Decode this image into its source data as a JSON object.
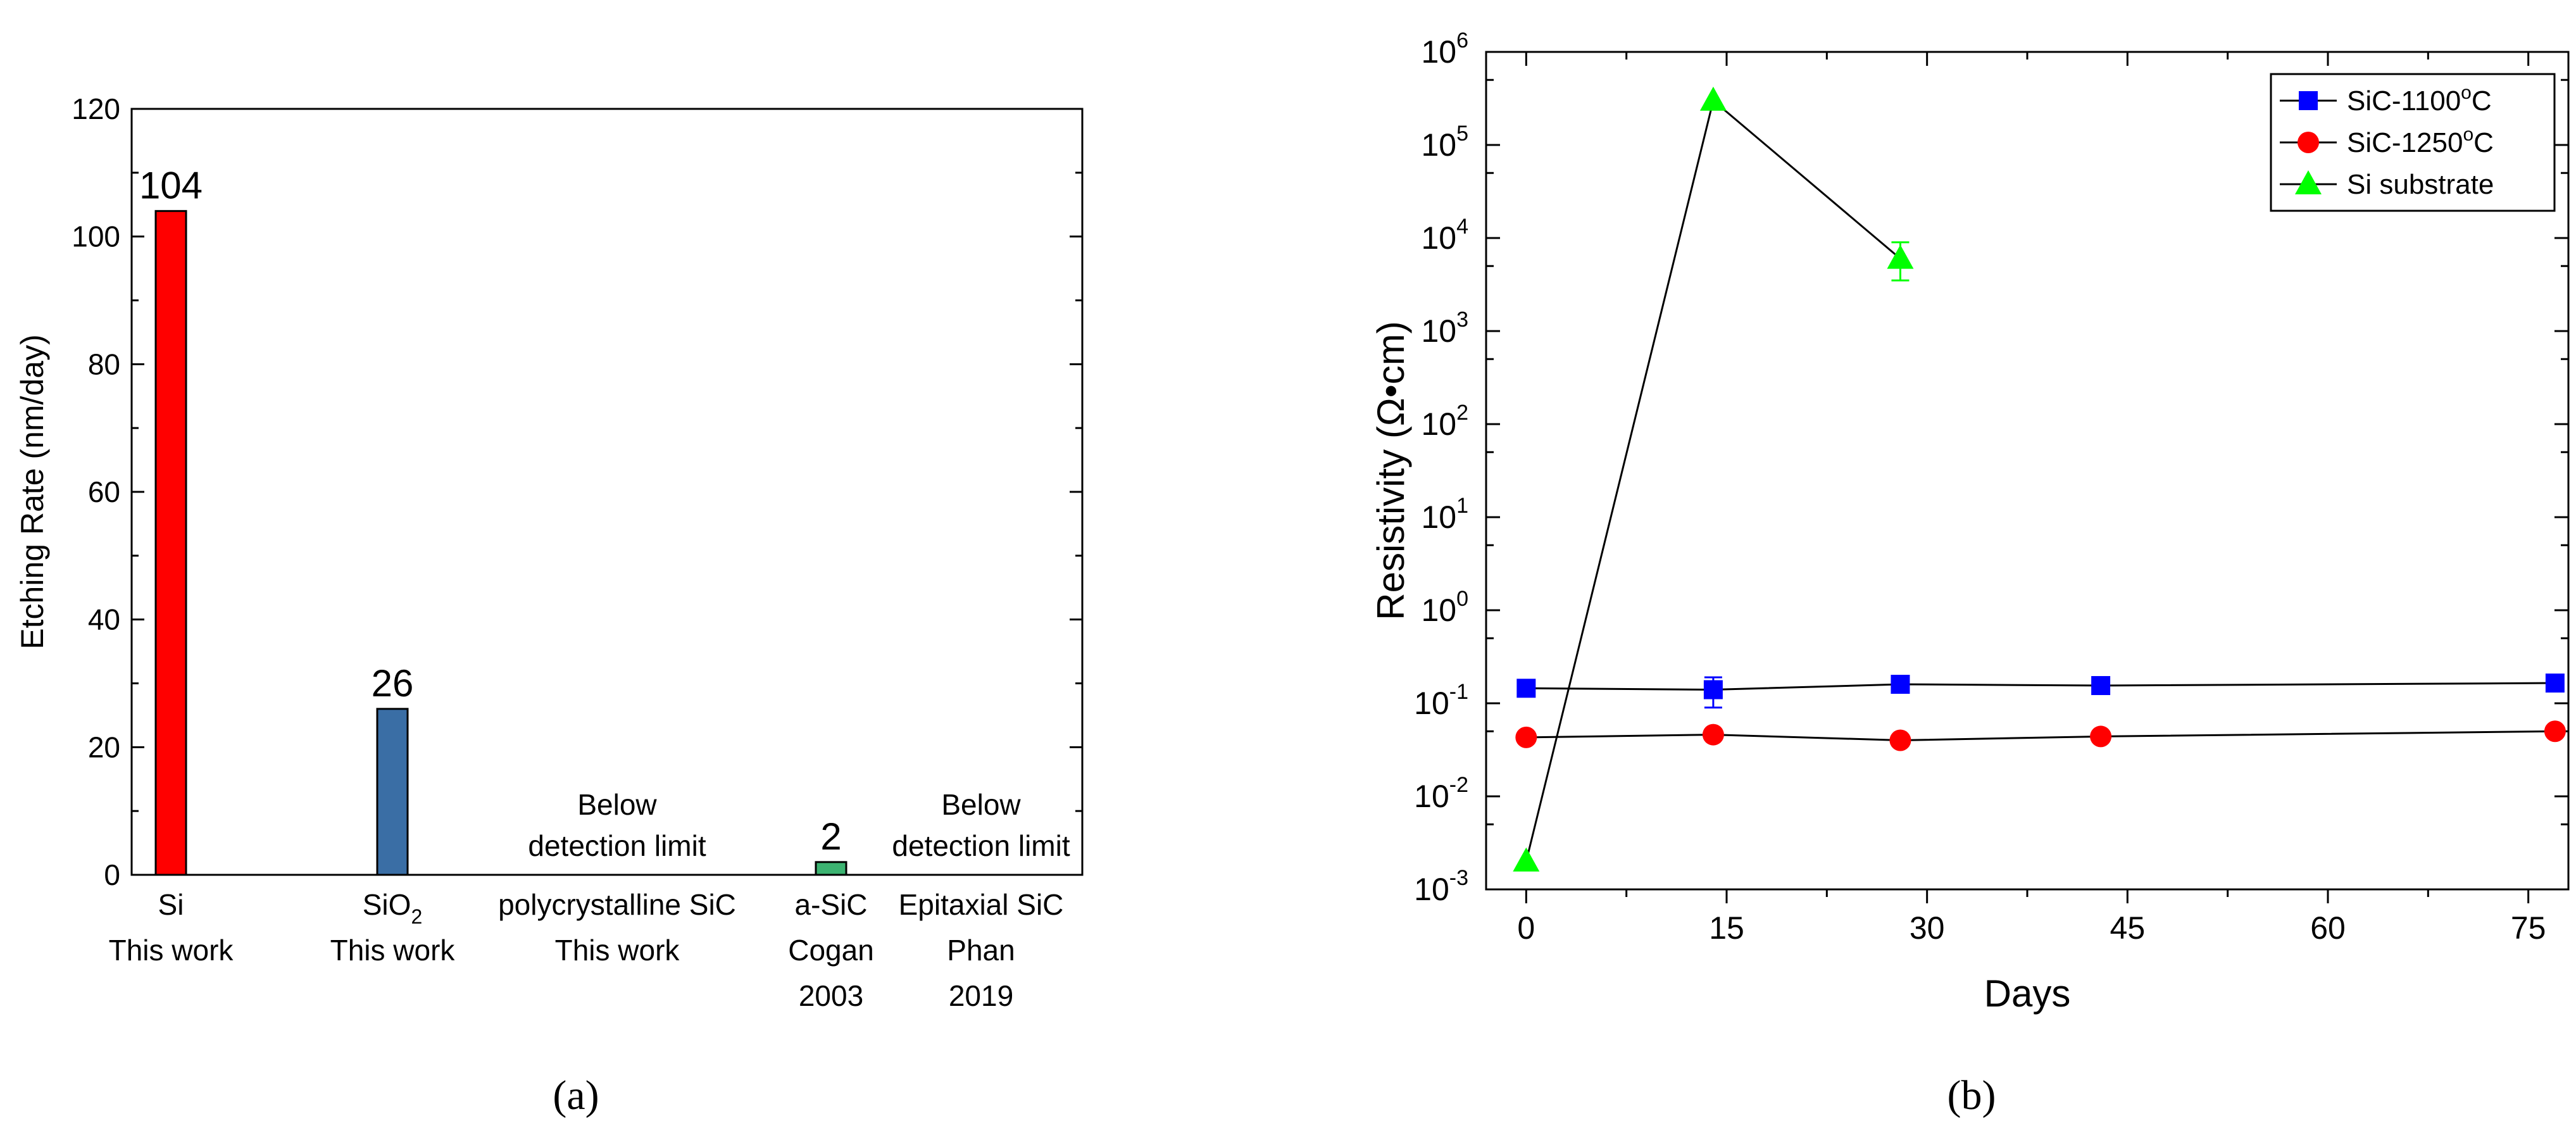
{
  "panels": {
    "a": "(a)",
    "b": "(b)"
  },
  "chart_data": [
    {
      "type": "bar",
      "ylabel": "Etching Rate (nm/day)",
      "ylim": [
        0,
        120
      ],
      "yticks": [
        0,
        20,
        40,
        60,
        80,
        100,
        120
      ],
      "categories": [
        {
          "lines": [
            "Si",
            "This work"
          ],
          "value": 104,
          "label": "104",
          "color": "#ff0000"
        },
        {
          "lines": [
            "SiO",
            "This work"
          ],
          "sub": "2",
          "value": 26,
          "label": "26",
          "color": "#3a6ea5"
        },
        {
          "lines": [
            "polycrystalline SiC",
            "This work"
          ],
          "value": null,
          "note": [
            "Below",
            "detection limit"
          ]
        },
        {
          "lines": [
            "a-SiC",
            "Cogan",
            "2003"
          ],
          "value": 2,
          "label": "2",
          "color": "#3cb371"
        },
        {
          "lines": [
            "Epitaxial SiC",
            "Phan",
            "2019"
          ],
          "value": null,
          "note": [
            "Below",
            "detection limit"
          ]
        }
      ]
    },
    {
      "type": "line",
      "xlabel": "Days",
      "ylabel": "Resistivity (Ω•cm)",
      "xlim": [
        -3,
        78
      ],
      "xticks": [
        0,
        15,
        30,
        45,
        60,
        75
      ],
      "ylim_exp": [
        -3,
        6
      ],
      "yscale": "log",
      "grid": false,
      "legend": "top-right",
      "series": [
        {
          "name": "SiC-1100°C",
          "base": "SiC-1100",
          "sup": "o",
          "tail": "C",
          "color": "#0000ff",
          "marker": "square",
          "x": [
            0,
            14,
            28,
            43,
            77
          ],
          "y": [
            0.145,
            0.14,
            0.16,
            0.155,
            0.165
          ],
          "err": [
            null,
            [
              0.09,
              0.19
            ],
            null,
            null,
            null
          ]
        },
        {
          "name": "SiC-1250°C",
          "base": "SiC-1250",
          "sup": "o",
          "tail": "C",
          "color": "#ff0000",
          "marker": "circle",
          "x": [
            0,
            14,
            28,
            43,
            77
          ],
          "y": [
            0.043,
            0.046,
            0.04,
            0.044,
            0.05
          ],
          "err": [
            null,
            null,
            null,
            null,
            null
          ]
        },
        {
          "name": "Si substrate",
          "base": "Si substrate",
          "sup": "",
          "tail": "",
          "color": "#00ff00",
          "marker": "triangle",
          "x": [
            0,
            14,
            28
          ],
          "y": [
            0.002,
            300000,
            6000
          ],
          "err": [
            null,
            null,
            [
              3500,
              9000
            ]
          ]
        }
      ]
    }
  ]
}
